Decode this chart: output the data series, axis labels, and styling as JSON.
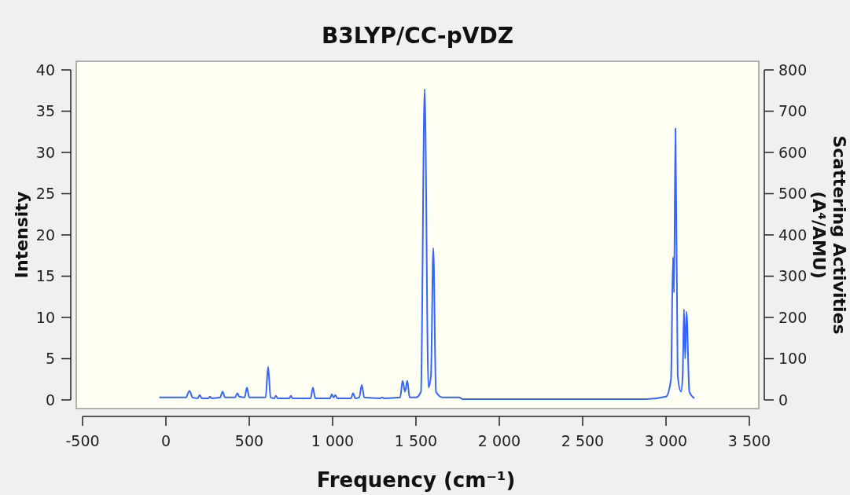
{
  "chart_data": {
    "type": "line",
    "title": "B3LYP/CC-pVDZ",
    "xlabel": "Frequency (cm⁻¹)",
    "ylabel": "Intensity",
    "y2label": "Scattering Activities (A⁴/AMU)",
    "x": [
      -40,
      120,
      141,
      160,
      190,
      203,
      215,
      255,
      264,
      275,
      325,
      340,
      355,
      415,
      429,
      440,
      472,
      486,
      500,
      598,
      613,
      628,
      650,
      660,
      670,
      740,
      750,
      760,
      868,
      882,
      896,
      985,
      995,
      1005,
      1017,
      1028,
      1110,
      1123,
      1136,
      1160,
      1175,
      1190,
      1285,
      1297,
      1310,
      1405,
      1420,
      1434,
      1448,
      1462,
      1500,
      1530,
      1552,
      1575,
      1590,
      1604,
      1620,
      1660,
      1760,
      1780,
      2880,
      3000,
      3030,
      3042,
      3048,
      3057,
      3070,
      3090,
      3100,
      3108,
      3115,
      3123,
      3140,
      3170
    ],
    "series": [
      {
        "color": "#3366ff",
        "values": [
          0.3,
          0.3,
          1.1,
          0.3,
          0.2,
          0.6,
          0.2,
          0.2,
          0.4,
          0.2,
          0.3,
          1.0,
          0.3,
          0.3,
          0.8,
          0.4,
          0.3,
          1.5,
          0.3,
          0.3,
          4.0,
          0.3,
          0.2,
          0.5,
          0.2,
          0.2,
          0.5,
          0.2,
          0.2,
          1.5,
          0.2,
          0.2,
          0.7,
          0.3,
          0.6,
          0.2,
          0.2,
          0.8,
          0.2,
          0.3,
          1.8,
          0.3,
          0.2,
          0.3,
          0.2,
          0.3,
          2.3,
          1.0,
          2.3,
          0.3,
          0.3,
          1.0,
          37.7,
          1.5,
          3,
          18.4,
          1.0,
          0.3,
          0.3,
          0.1,
          0.1,
          0.4,
          2.5,
          17.3,
          13,
          32.9,
          3,
          1.0,
          3,
          11.0,
          5,
          10.7,
          1.0,
          0.2
        ]
      }
    ],
    "xlim": [
      -500,
      3500
    ],
    "xticks": [
      -500,
      0,
      500,
      {
        "value": 1000,
        "label": "1 000"
      },
      {
        "value": 1500,
        "label": "1 500"
      },
      {
        "value": 2000,
        "label": "2 000"
      },
      {
        "value": 2500,
        "label": "2 500"
      },
      {
        "value": 3000,
        "label": "3 000"
      },
      {
        "value": 3500,
        "label": "3 500"
      }
    ],
    "ylim": [
      0,
      40
    ],
    "yticks": [
      0,
      5,
      10,
      15,
      20,
      25,
      30,
      35,
      40
    ],
    "y2lim": [
      0,
      800
    ],
    "y2ticks": [
      0,
      100,
      200,
      300,
      400,
      500,
      600,
      700,
      800
    ],
    "grid": false,
    "marker": "none",
    "line_style": "solid"
  }
}
